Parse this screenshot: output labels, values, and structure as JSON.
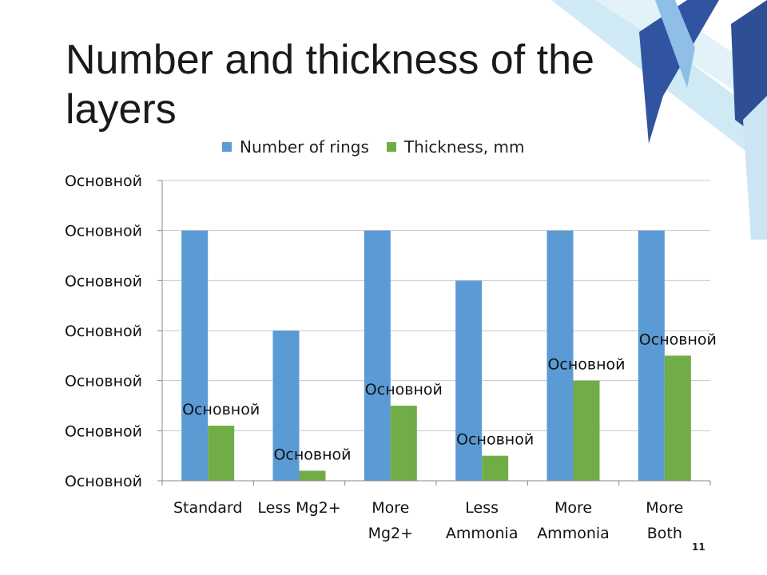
{
  "slide": {
    "title": "Number and thickness of the layers",
    "number": "11"
  },
  "colors": {
    "series_blue": "#5b9bd5",
    "series_green": "#70ad47",
    "gridline": "#c8c8c8",
    "decor_dark": "#2e4f96",
    "decor_light": "#b9dff0"
  },
  "chart_data": {
    "type": "bar",
    "title": "",
    "xlabel": "",
    "ylabel": "",
    "ylim": [
      0,
      6
    ],
    "y_tick_labels": [
      "Основной",
      "Основной",
      "Основной",
      "Основной",
      "Основной",
      "Основной",
      "Основной"
    ],
    "categories": [
      [
        "Standard"
      ],
      [
        "Less Mg2+"
      ],
      [
        "More",
        "Mg2+"
      ],
      [
        "Less",
        "Ammonia"
      ],
      [
        "More",
        "Ammonia"
      ],
      [
        "More",
        "Both"
      ]
    ],
    "series": [
      {
        "name": "Number of rings",
        "color": "#5b9bd5",
        "values": [
          5,
          3,
          5,
          4,
          5,
          5
        ]
      },
      {
        "name": "Thickness, mm",
        "color": "#70ad47",
        "values": [
          1.1,
          0.2,
          1.5,
          0.5,
          2.0,
          2.5
        ],
        "data_labels": [
          "Основной",
          "Основной",
          "Основной",
          "Основной",
          "Основной",
          "Основной"
        ]
      }
    ],
    "legend": "top",
    "grid": true
  }
}
